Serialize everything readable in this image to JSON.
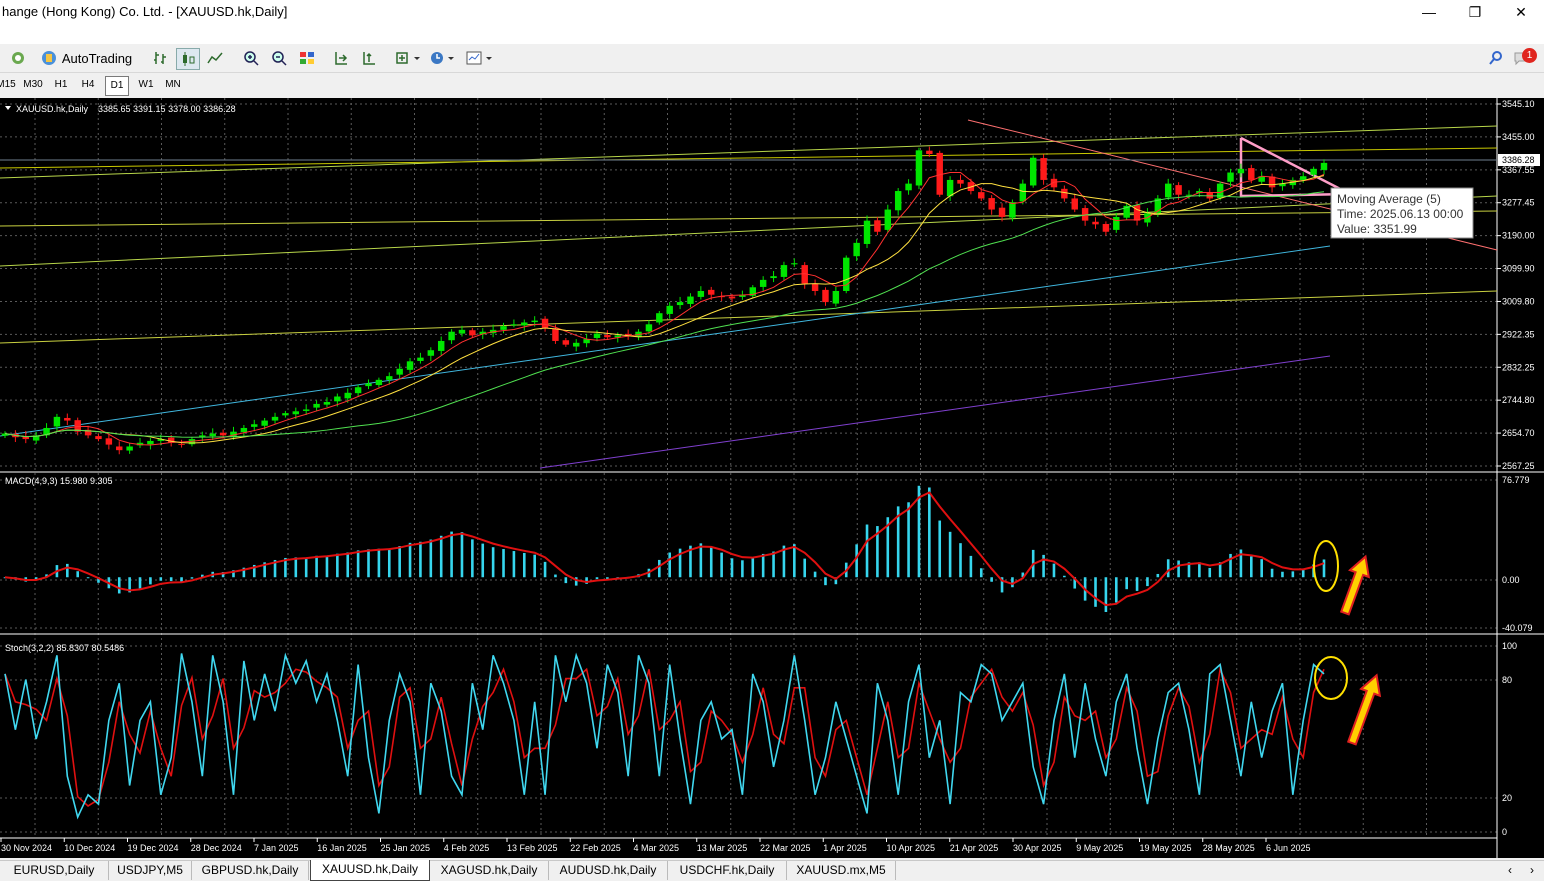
{
  "window": {
    "title": "hange (Hong Kong) Co. Ltd. - [XAUUSD.hk,Daily]"
  },
  "toolbar": {
    "autotrading_label": "AutoTrading",
    "notification_count": "1"
  },
  "timeframes": [
    {
      "label": "M15",
      "active": false
    },
    {
      "label": "M30",
      "active": false
    },
    {
      "label": "H1",
      "active": false
    },
    {
      "label": "H4",
      "active": false
    },
    {
      "label": "D1",
      "active": true
    },
    {
      "label": "W1",
      "active": false
    },
    {
      "label": "MN",
      "active": false
    }
  ],
  "chart_data": {
    "type": "candlestick",
    "symbol_header": "XAUUSD.hk,Daily",
    "ohlc_header": "3385.65 3391.15 3378.00 3386.28",
    "current_price": "3386.28",
    "price_axis": [
      "3545.10",
      "3455.00",
      "3367.55",
      "3277.45",
      "3190.00",
      "3099.90",
      "3009.80",
      "2922.35",
      "2832.25",
      "2744.80",
      "2654.70",
      "2567.25"
    ],
    "ylim": [
      2567.25,
      3545.1
    ],
    "date_axis": [
      "30 Nov 2024",
      "10 Dec 2024",
      "19 Dec 2024",
      "28 Dec 2024",
      "7 Jan 2025",
      "16 Jan 2025",
      "25 Jan 2025",
      "4 Feb 2025",
      "13 Feb 2025",
      "22 Feb 2025",
      "4 Mar 2025",
      "13 Mar 2025",
      "22 Mar 2025",
      "1 Apr 2025",
      "10 Apr 2025",
      "21 Apr 2025",
      "30 Apr 2025",
      "9 May 2025",
      "19 May 2025",
      "28 May 2025",
      "6 Jun 2025"
    ],
    "close_path": [
      2655,
      2645,
      2640,
      2650,
      2670,
      2700,
      2690,
      2660,
      2650,
      2640,
      2625,
      2610,
      2620,
      2630,
      2635,
      2640,
      2630,
      2625,
      2640,
      2650,
      2655,
      2650,
      2660,
      2670,
      2680,
      2690,
      2700,
      2710,
      2715,
      2720,
      2735,
      2740,
      2755,
      2765,
      2780,
      2790,
      2800,
      2810,
      2830,
      2850,
      2860,
      2880,
      2905,
      2930,
      2935,
      2920,
      2930,
      2935,
      2945,
      2950,
      2955,
      2960,
      2940,
      2905,
      2895,
      2900,
      2910,
      2925,
      2915,
      2920,
      2920,
      2930,
      2950,
      2980,
      3000,
      3010,
      3025,
      3040,
      3030,
      3025,
      3020,
      3030,
      3050,
      3070,
      3080,
      3110,
      3115,
      3060,
      3040,
      3010,
      3040,
      3130,
      3170,
      3230,
      3200,
      3260,
      3310,
      3330,
      3420,
      3410,
      3300,
      3340,
      3330,
      3310,
      3290,
      3260,
      3240,
      3280,
      3330,
      3400,
      3340,
      3320,
      3290,
      3260,
      3230,
      3220,
      3200,
      3240,
      3270,
      3230,
      3250,
      3290,
      3330,
      3300,
      3300,
      3310,
      3290,
      3330,
      3360,
      3370,
      3340,
      3350,
      3320,
      3330,
      3340,
      3350,
      3370,
      3386
    ],
    "ma5_tooltip": {
      "line1": "Moving Average (5)",
      "line2": "Time: 2025.06.13 00:00",
      "line3": "Value: 3351.99"
    },
    "macd": {
      "label": "MACD(4,9,3) 15.980 9.305",
      "axis": [
        "76.779",
        "0.00",
        "-40.079"
      ],
      "ylim": [
        -40.079,
        76.779
      ]
    },
    "stoch": {
      "label": "Stoch(3,2,2) 85.8307 80.5486",
      "axis": [
        "100",
        "80",
        "20",
        "0"
      ],
      "ylim": [
        0,
        100
      ],
      "k": [
        85,
        55,
        82,
        50,
        70,
        95,
        30,
        8,
        20,
        15,
        60,
        80,
        25,
        60,
        70,
        20,
        40,
        96,
        70,
        30,
        95,
        70,
        20,
        92,
        60,
        85,
        65,
        95,
        80,
        92,
        70,
        85,
        60,
        30,
        90,
        40,
        10,
        60,
        85,
        70,
        20,
        80,
        65,
        30,
        20,
        80,
        55,
        95,
        80,
        60,
        20,
        70,
        20,
        95,
        70,
        95,
        80,
        45,
        90,
        75,
        30,
        95,
        80,
        30,
        90,
        50,
        15,
        60,
        70,
        50,
        55,
        20,
        85,
        70,
        35,
        60,
        95,
        60,
        20,
        40,
        70,
        50,
        30,
        10,
        80,
        60,
        20,
        70,
        90,
        40,
        60,
        15,
        75,
        70,
        90,
        85,
        60,
        70,
        80,
        35,
        15,
        60,
        85,
        40,
        80,
        50,
        30,
        70,
        85,
        45,
        15,
        50,
        75,
        80,
        55,
        20,
        85,
        90,
        60,
        30,
        70,
        40,
        65,
        80,
        20,
        60,
        90,
        85
      ]
    }
  },
  "tabs": [
    {
      "label": "EURUSD,Daily",
      "active": false
    },
    {
      "label": "USDJPY,M5",
      "active": false
    },
    {
      "label": "GBPUSD.hk,Daily",
      "active": false
    },
    {
      "label": "XAUUSD.hk,Daily",
      "active": true
    },
    {
      "label": "XAGUSD.hk,Daily",
      "active": false
    },
    {
      "label": "AUDUSD.hk,Daily",
      "active": false
    },
    {
      "label": "USDCHF.hk,Daily",
      "active": false
    },
    {
      "label": "XAUUSD.mx,M5",
      "active": false
    }
  ],
  "colors": {
    "bull": "#00e600",
    "bear": "#ff1a1a",
    "macd_hist": "#36d6ee",
    "signal": "#e01010",
    "stoch_k": "#40d8f0",
    "stoch_d": "#e01010",
    "tooltip_bg": "#ffffff",
    "annotation_yellow": "#ffe000",
    "arrow_fill": "#ffd000",
    "triangle": "#ff9ec8"
  }
}
